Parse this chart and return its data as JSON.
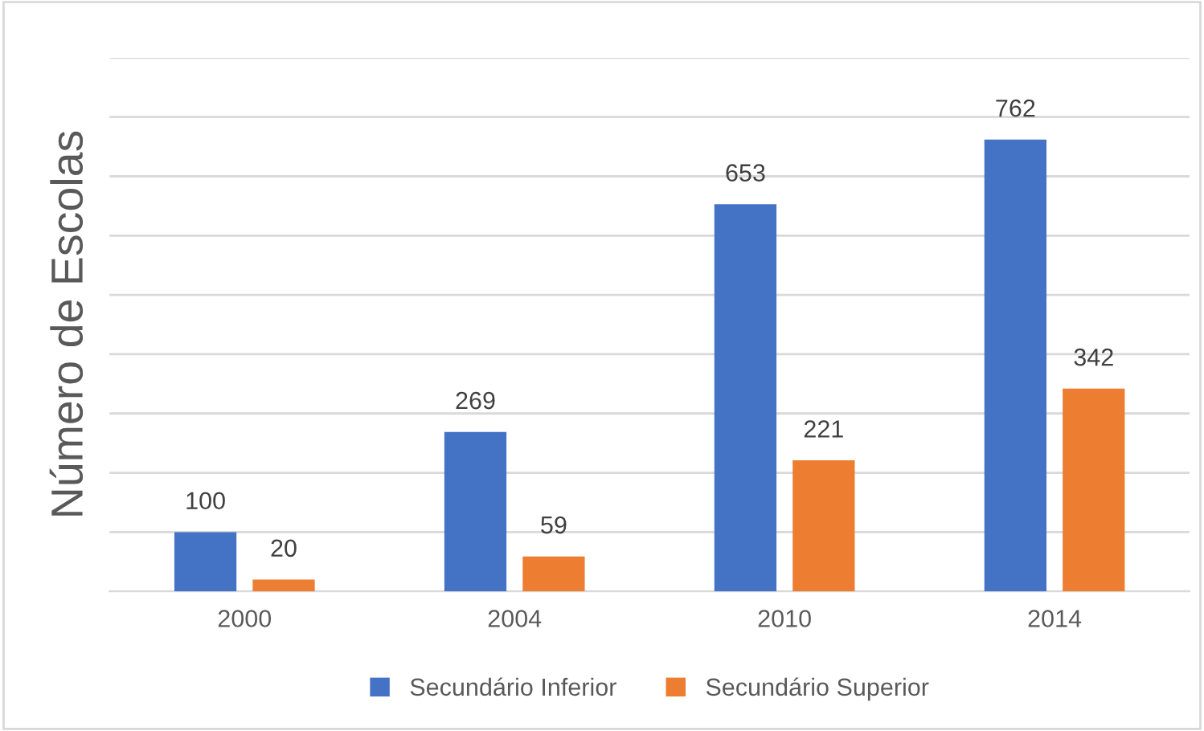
{
  "chart_data": {
    "type": "bar",
    "ylabel": "Número de Escolas",
    "categories": [
      "2000",
      "2004",
      "2010",
      "2014"
    ],
    "series": [
      {
        "name": "Secundário Inferior",
        "color": "#4472c4",
        "values": [
          100,
          269,
          653,
          762
        ]
      },
      {
        "name": "Secundário Superior",
        "color": "#ed7d31",
        "values": [
          20,
          59,
          221,
          342
        ]
      }
    ],
    "ylim": [
      0,
      900
    ],
    "yticks": [
      {
        "value": 0,
        "label": null
      },
      {
        "value": 100,
        "label": null
      },
      {
        "value": 200,
        "label": null
      },
      {
        "value": 300,
        "label": null
      },
      {
        "value": 400,
        "label": null
      },
      {
        "value": 500,
        "label": null
      },
      {
        "value": 600,
        "label": null
      },
      {
        "value": 700,
        "label": null
      },
      {
        "value": 800,
        "label": null
      },
      {
        "value": 900,
        "label": null
      }
    ],
    "grid": "y",
    "legend": "bottom",
    "data_labels": true,
    "tick_labels": "x"
  }
}
